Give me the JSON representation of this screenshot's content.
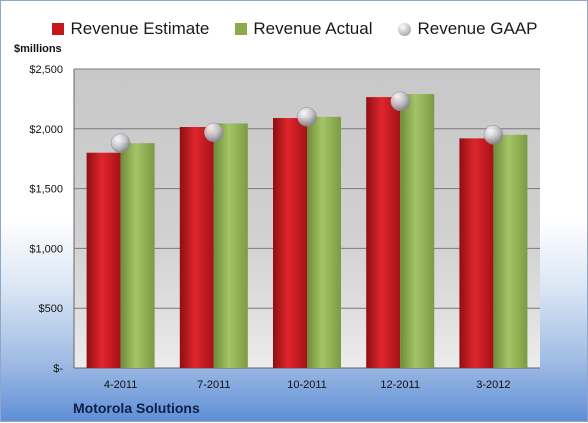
{
  "legend": {
    "estimate": "Revenue Estimate",
    "actual": "Revenue Actual",
    "gaap": "Revenue GAAP"
  },
  "unit_label": "$millions",
  "company": "Motorola Solutions",
  "colors": {
    "estimate": "#c4161c",
    "actual": "#8cac4c",
    "gaap": "#b5b5bd"
  },
  "chart_data": {
    "type": "bar",
    "categories": [
      "4-2011",
      "7-2011",
      "10-2011",
      "12-2011",
      "3-2012"
    ],
    "series": [
      {
        "name": "Revenue Estimate",
        "values": [
          1800,
          2015,
          2090,
          2265,
          1920
        ]
      },
      {
        "name": "Revenue Actual",
        "values": [
          1880,
          2045,
          2100,
          2290,
          1950
        ]
      },
      {
        "name": "Revenue GAAP",
        "type": "scatter",
        "values": [
          1880,
          1970,
          2100,
          2230,
          1950
        ]
      }
    ],
    "ylabel": "$millions",
    "ylim": [
      0,
      2500
    ],
    "yticks": [
      0,
      500,
      1000,
      1500,
      2000,
      2500
    ],
    "ytick_labels": [
      "$-",
      "$500",
      "$1,000",
      "$1,500",
      "$2,000",
      "$2,500"
    ],
    "grid": true,
    "legend_position": "top"
  }
}
